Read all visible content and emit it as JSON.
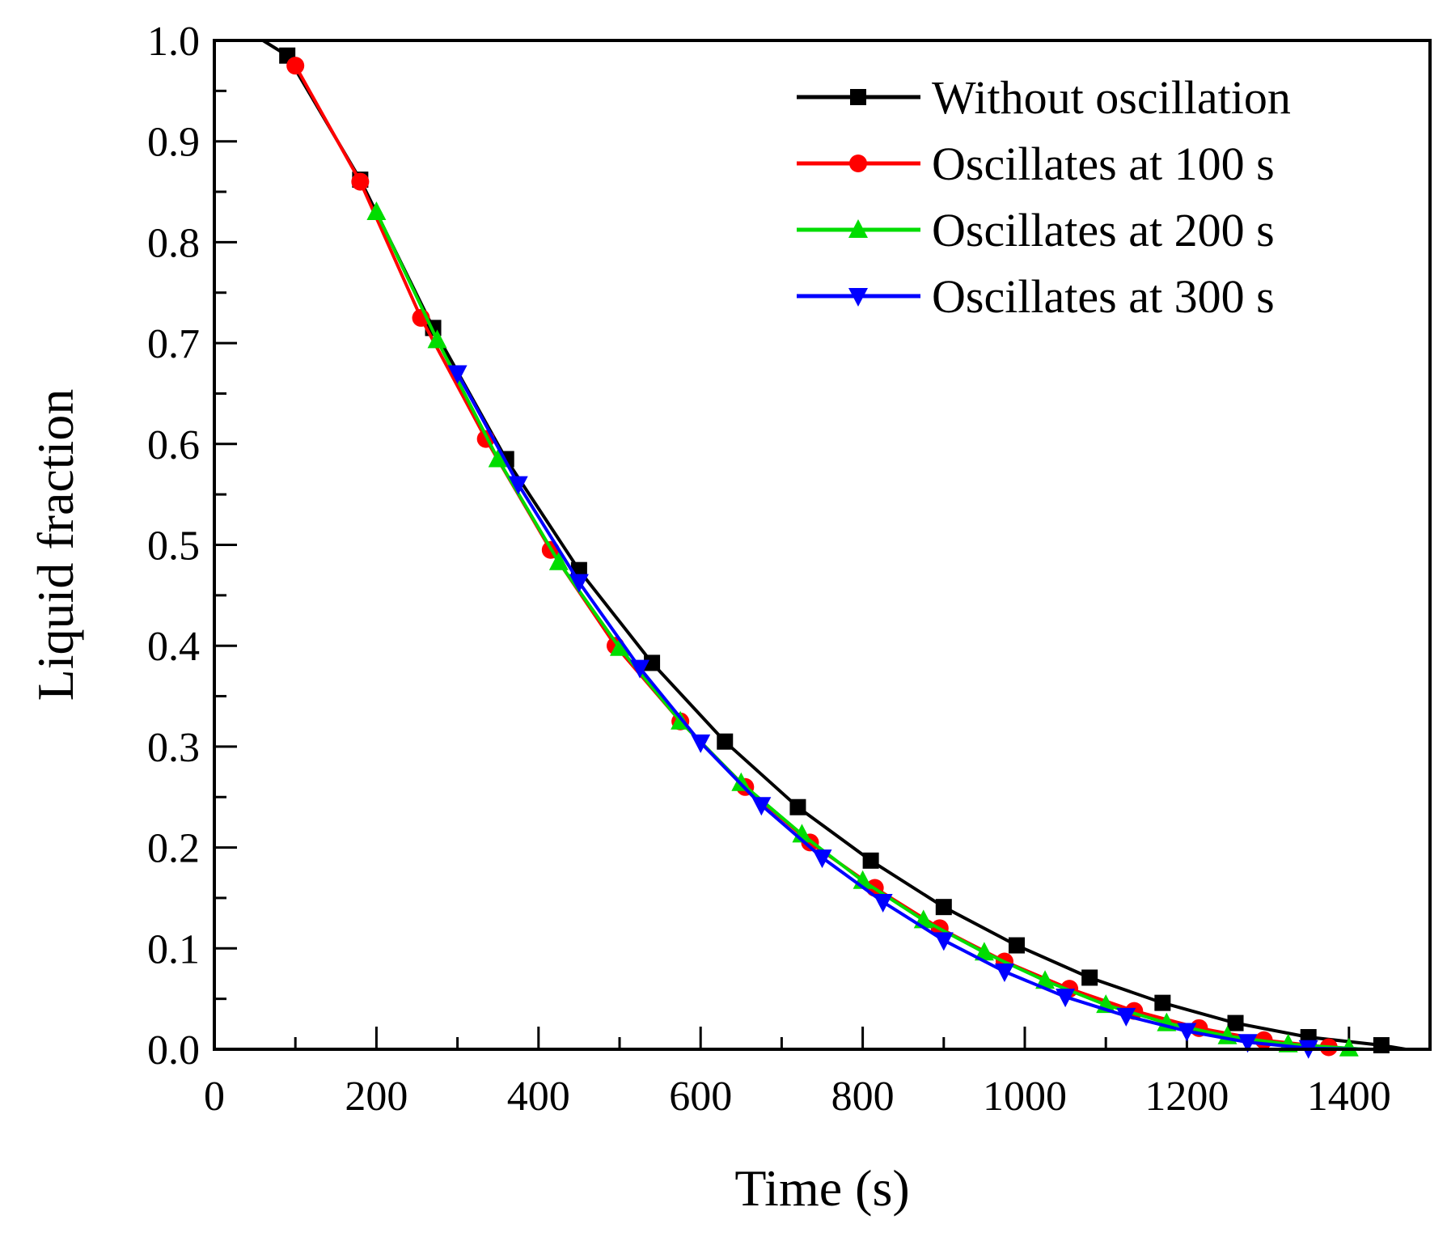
{
  "chart_data": {
    "type": "line",
    "title": "",
    "xlabel": "Time (s)",
    "ylabel": "Liquid fraction",
    "xlim": [
      0,
      1500
    ],
    "ylim": [
      0,
      1.0
    ],
    "xticks": [
      0,
      200,
      400,
      600,
      800,
      1000,
      1200,
      1400
    ],
    "xtick_labels": [
      "0",
      "200",
      "400",
      "600",
      "800",
      "1000",
      "1200",
      "1400"
    ],
    "yticks": [
      0,
      0.1,
      0.2,
      0.3,
      0.4,
      0.5,
      0.6,
      0.7,
      0.8,
      0.9,
      1.0
    ],
    "ytick_labels": [
      "0.0",
      "0.1",
      "0.2",
      "0.3",
      "0.4",
      "0.5",
      "0.6",
      "0.7",
      "0.8",
      "0.9",
      "1.0"
    ],
    "legend_position": "top-right",
    "series": [
      {
        "name": "Without oscillation",
        "color": "#000000",
        "marker": "square",
        "x": [
          0,
          60,
          90,
          180,
          270,
          360,
          450,
          540,
          630,
          720,
          810,
          900,
          990,
          1080,
          1170,
          1260,
          1350,
          1440,
          1470,
          1500
        ],
        "y": [
          1.0,
          1.0,
          0.985,
          0.862,
          0.715,
          0.585,
          0.475,
          0.383,
          0.305,
          0.24,
          0.187,
          0.141,
          0.103,
          0.071,
          0.046,
          0.026,
          0.012,
          0.004,
          0.0,
          0.0
        ]
      },
      {
        "name": "Oscillates at 100 s",
        "color": "#ff0000",
        "marker": "circle",
        "x": [
          100,
          180,
          255,
          335,
          415,
          495,
          575,
          655,
          735,
          815,
          895,
          975,
          1055,
          1135,
          1215,
          1295,
          1375,
          1420
        ],
        "y": [
          0.975,
          0.86,
          0.725,
          0.605,
          0.495,
          0.4,
          0.325,
          0.26,
          0.205,
          0.16,
          0.12,
          0.087,
          0.06,
          0.038,
          0.021,
          0.009,
          0.002,
          0.0
        ]
      },
      {
        "name": "Oscillates at 200 s",
        "color": "#00dd00",
        "marker": "triangle-up",
        "x": [
          200,
          275,
          350,
          425,
          500,
          575,
          650,
          725,
          800,
          875,
          950,
          1025,
          1100,
          1175,
          1250,
          1325,
          1400,
          1420
        ],
        "y": [
          0.83,
          0.703,
          0.585,
          0.483,
          0.398,
          0.325,
          0.264,
          0.213,
          0.167,
          0.128,
          0.096,
          0.068,
          0.044,
          0.026,
          0.013,
          0.005,
          0.001,
          0.0
        ]
      },
      {
        "name": "Oscillates at 300 s",
        "color": "#0000ff",
        "marker": "triangle-down",
        "x": [
          300,
          375,
          450,
          525,
          600,
          675,
          750,
          825,
          900,
          975,
          1050,
          1125,
          1200,
          1275,
          1350,
          1420
        ],
        "y": [
          0.67,
          0.56,
          0.463,
          0.378,
          0.304,
          0.242,
          0.19,
          0.146,
          0.108,
          0.077,
          0.052,
          0.033,
          0.018,
          0.007,
          0.001,
          0.0
        ]
      }
    ]
  }
}
